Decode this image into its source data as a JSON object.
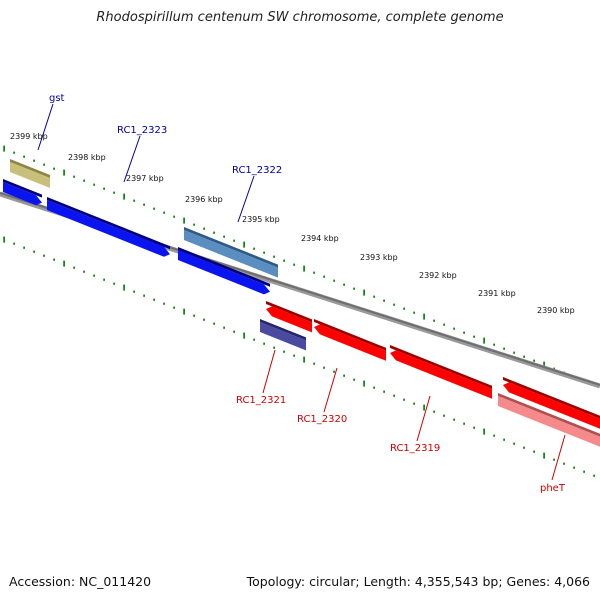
{
  "title": "Rhodospirillum centenum SW chromosome, complete genome",
  "accession": "Accession: NC_011420",
  "summary": "Topology: circular; Length: 4,355,543 bp; Genes: 4,066",
  "colors": {
    "forward_label": "#000099",
    "reverse_label": "#cc0000",
    "tick": "#138a13",
    "backbone": "#808080"
  },
  "ticks": [
    {
      "label": "2399 kbp"
    },
    {
      "label": "2398 kbp"
    },
    {
      "label": "2397 kbp"
    },
    {
      "label": "2396 kbp"
    },
    {
      "label": "2395 kbp"
    },
    {
      "label": "2394 kbp"
    },
    {
      "label": "2393 kbp"
    },
    {
      "label": "2392 kbp"
    },
    {
      "label": "2391 kbp"
    },
    {
      "label": "2390 kbp"
    }
  ],
  "gene_labels": [
    {
      "text": "gst",
      "strand": "forward"
    },
    {
      "text": "RC1_2323",
      "strand": "forward"
    },
    {
      "text": "RC1_2322",
      "strand": "forward"
    },
    {
      "text": "RC1_2321",
      "strand": "reverse"
    },
    {
      "text": "RC1_2320",
      "strand": "reverse"
    },
    {
      "text": "RC1_2319",
      "strand": "reverse"
    },
    {
      "text": "pheT",
      "strand": "reverse"
    }
  ]
}
